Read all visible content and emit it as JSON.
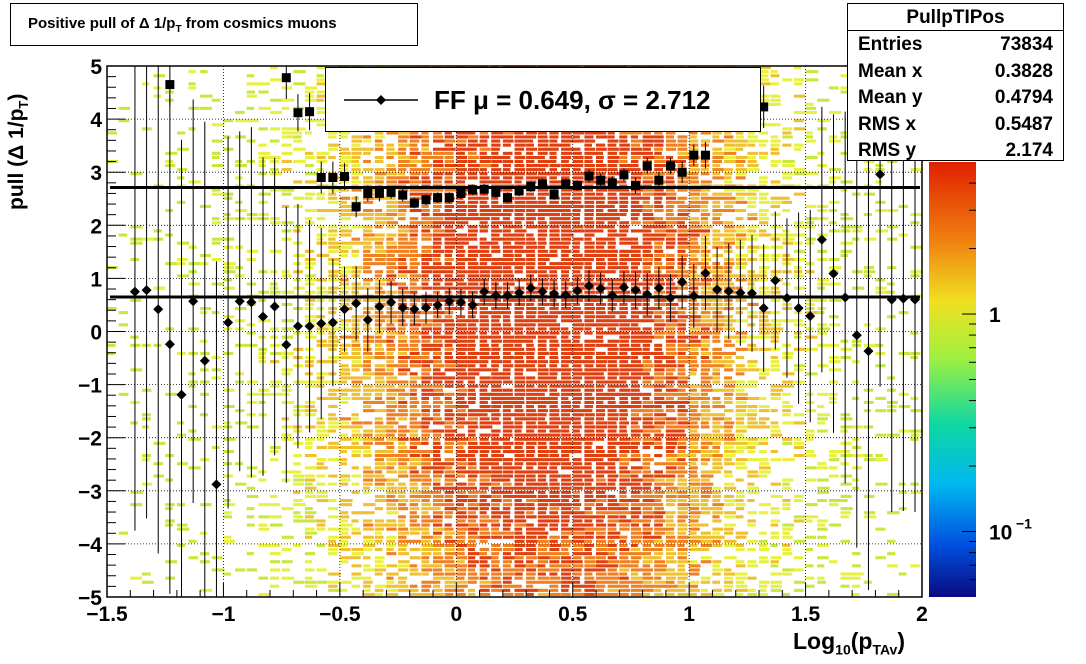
{
  "title": {
    "text": "Positive pull of Δ 1/p",
    "sub": "T",
    "suffix": " from cosmics muons"
  },
  "stats": {
    "name": "PullpTIPos",
    "rows": [
      {
        "label": "Entries",
        "value": "73834"
      },
      {
        "label": "Mean x",
        "value": "0.3828"
      },
      {
        "label": "Mean y",
        "value": "0.4794"
      },
      {
        "label": "RMS x",
        "value": "0.5487"
      },
      {
        "label": "RMS y",
        "value": "2.174"
      }
    ]
  },
  "legend": {
    "text": "FF μ =  0.649, σ =   2.712"
  },
  "axes": {
    "ylabel": {
      "pre": "pull (Δ 1/p",
      "sub": "T",
      "post": ")"
    },
    "xlabel": {
      "pre": "Log",
      "sub1": "10",
      "mid": "(p",
      "sub2": "TAv",
      "post": ")"
    },
    "xticks": [
      "−1.5",
      "−1",
      "−0.5",
      "0",
      "0.5",
      "1",
      "1.5",
      "2"
    ],
    "yticks": [
      "−5",
      "−4",
      "−3",
      "−2",
      "−1",
      "0",
      "1",
      "2",
      "3",
      "4",
      "5"
    ],
    "zticks": [
      {
        "main": "10",
        "exp": "−1"
      },
      {
        "main": "1",
        "exp": ""
      }
    ]
  },
  "colors": {
    "hot": "#e04010",
    "mid": "#f08020",
    "warm": "#f0c030",
    "cool": "#c8e840",
    "fitline": "#000000",
    "markers": "#000000"
  },
  "chart_data": {
    "type": "heatmap",
    "title": "Positive pull of Δ 1/pT from cosmics muons",
    "xlabel": "Log10(pTAv)",
    "ylabel": "pull (Δ 1/pT)",
    "xlim": [
      -1.5,
      2
    ],
    "ylim": [
      -5,
      5
    ],
    "zscale": "log",
    "zlim": [
      0.05,
      5
    ],
    "grid": true,
    "fit_lines": [
      {
        "name": "mean",
        "y": 0.649
      },
      {
        "name": "sigma",
        "y": 2.712
      }
    ],
    "profile_mean": {
      "x": [
        -1.38,
        -1.33,
        -1.28,
        -1.23,
        -1.18,
        -1.13,
        -1.08,
        -1.03,
        -0.98,
        -0.93,
        -0.88,
        -0.83,
        -0.78,
        -0.73,
        -0.68,
        -0.63,
        -0.58,
        -0.53,
        -0.48,
        -0.43,
        -0.38,
        -0.33,
        -0.28,
        -0.23,
        -0.18,
        -0.13,
        -0.08,
        -0.03,
        0.02,
        0.07,
        0.12,
        0.17,
        0.22,
        0.27,
        0.32,
        0.37,
        0.42,
        0.47,
        0.52,
        0.57,
        0.62,
        0.67,
        0.72,
        0.77,
        0.82,
        0.87,
        0.92,
        0.97,
        1.02,
        1.07,
        1.12,
        1.17,
        1.22,
        1.27,
        1.32,
        1.37,
        1.42,
        1.47,
        1.52,
        1.57,
        1.62,
        1.67,
        1.72,
        1.77,
        1.82,
        1.87,
        1.92,
        1.97
      ],
      "y": [
        0.75,
        0.78,
        0.42,
        -0.24,
        -1.19,
        0.57,
        -0.55,
        -2.88,
        0.17,
        0.57,
        0.55,
        0.28,
        0.47,
        -0.25,
        0.1,
        0.1,
        0.15,
        0.17,
        0.42,
        0.53,
        0.22,
        0.47,
        0.55,
        0.45,
        0.42,
        0.45,
        0.5,
        0.57,
        0.55,
        0.5,
        0.75,
        0.68,
        0.68,
        0.73,
        0.82,
        0.75,
        0.71,
        0.69,
        0.77,
        0.86,
        0.81,
        0.68,
        0.83,
        0.78,
        0.7,
        0.82,
        0.63,
        0.93,
        0.67,
        1.1,
        0.79,
        0.76,
        0.73,
        0.72,
        0.44,
        0.96,
        0.63,
        0.44,
        0.29,
        1.73,
        1.09,
        0.64,
        -0.07,
        -0.37,
        2.96,
        0.6,
        0.62,
        0.6
      ],
      "err": [
        4.5,
        4.3,
        4.6,
        4.7,
        4.8,
        3.8,
        4.5,
        4.2,
        3.5,
        3.2,
        3.3,
        3.0,
        2.8,
        2.6,
        2.3,
        2.0,
        1.8,
        1.2,
        0.8,
        0.7,
        0.6,
        0.5,
        0.4,
        0.35,
        0.3,
        0.3,
        0.25,
        0.25,
        0.25,
        0.25,
        0.25,
        0.25,
        0.25,
        0.25,
        0.25,
        0.25,
        0.25,
        0.25,
        0.25,
        0.3,
        0.3,
        0.3,
        0.3,
        0.35,
        0.4,
        0.4,
        0.45,
        0.5,
        0.6,
        0.7,
        0.8,
        0.9,
        1.0,
        1.1,
        1.2,
        1.3,
        1.5,
        1.8,
        2.0,
        2.5,
        3.0,
        3.5,
        4.0,
        4.5,
        4.0,
        4.0,
        4.0,
        4.0
      ]
    },
    "profile_rms": {
      "x": [
        -1.23,
        -0.73,
        -0.68,
        -0.63,
        -0.58,
        -0.53,
        -0.48,
        -0.43,
        -0.38,
        -0.33,
        -0.28,
        -0.23,
        -0.18,
        -0.13,
        -0.08,
        -0.03,
        0.02,
        0.07,
        0.12,
        0.17,
        0.22,
        0.27,
        0.32,
        0.37,
        0.42,
        0.47,
        0.52,
        0.57,
        0.62,
        0.67,
        0.72,
        0.77,
        0.82,
        0.87,
        0.92,
        0.97,
        1.02,
        1.07,
        1.32
      ],
      "y": [
        4.65,
        4.78,
        4.12,
        4.14,
        2.9,
        2.9,
        2.92,
        2.35,
        2.6,
        2.6,
        2.62,
        2.57,
        2.42,
        2.48,
        2.52,
        2.52,
        2.6,
        2.67,
        2.68,
        2.62,
        2.52,
        2.65,
        2.73,
        2.78,
        2.58,
        2.78,
        2.75,
        2.93,
        2.85,
        2.8,
        2.95,
        2.75,
        3.12,
        2.85,
        3.12,
        3.0,
        3.32,
        3.32,
        4.23
      ],
      "err": [
        0.4,
        0.4,
        0.35,
        0.35,
        0.3,
        0.3,
        0.25,
        0.2,
        0.15,
        0.15,
        0.12,
        0.12,
        0.1,
        0.1,
        0.1,
        0.1,
        0.1,
        0.1,
        0.1,
        0.1,
        0.1,
        0.1,
        0.1,
        0.1,
        0.1,
        0.1,
        0.1,
        0.12,
        0.12,
        0.12,
        0.12,
        0.15,
        0.15,
        0.15,
        0.15,
        0.2,
        0.2,
        0.25,
        0.4
      ]
    }
  }
}
